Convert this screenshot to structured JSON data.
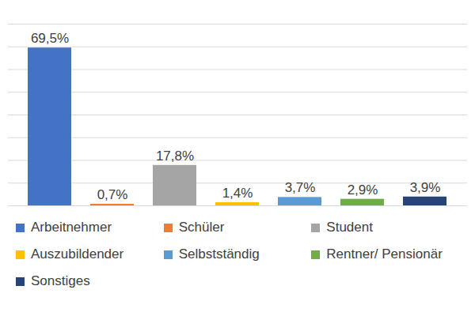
{
  "chart_data": {
    "type": "bar",
    "categories": [
      "Arbeitnehmer",
      "Schüler",
      "Student",
      "Auszubildender",
      "Selbstständig",
      "Rentner/ Pensionär",
      "Sonstiges"
    ],
    "values": [
      69.5,
      0.7,
      17.8,
      1.4,
      3.7,
      2.9,
      3.9
    ],
    "value_labels": [
      "69,5%",
      "0,7%",
      "17,8%",
      "1,4%",
      "3,7%",
      "2,9%",
      "3,9%"
    ],
    "colors": [
      "#4472c4",
      "#ed7d31",
      "#a5a5a5",
      "#ffc000",
      "#5b9bd5",
      "#70ad47",
      "#264478"
    ],
    "ylim": [
      0,
      80
    ],
    "yticks": [
      0,
      10,
      20,
      30,
      40,
      50,
      60,
      70,
      80
    ],
    "grid": true,
    "data_labels": true,
    "tick_labels": false,
    "legend": "bottom"
  }
}
